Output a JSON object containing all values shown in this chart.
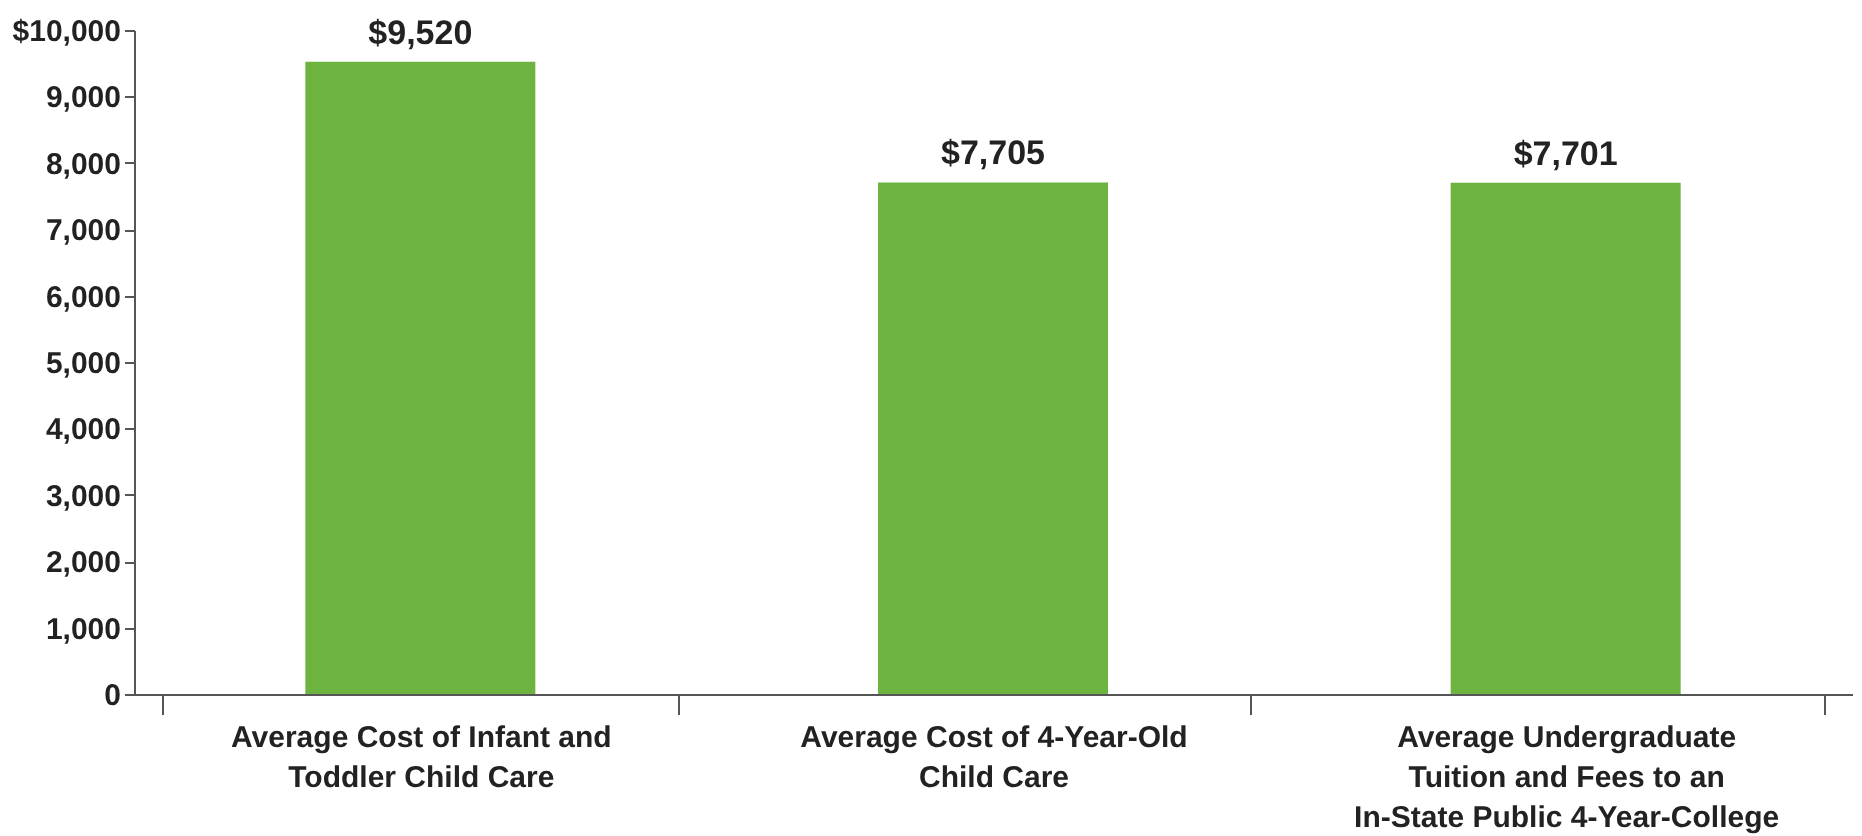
{
  "chart_data": {
    "type": "bar",
    "categories": [
      "Average Cost of Infant and\nToddler Child Care",
      "Average Cost of 4-Year-Old\nChild Care",
      "Average Undergraduate\nTuition and Fees to an\nIn-State Public 4-Year-College"
    ],
    "values": [
      9520,
      7705,
      7701
    ],
    "value_labels": [
      "$9,520",
      "$7,705",
      "$7,701"
    ],
    "color": "#6db33f",
    "ylim": [
      0,
      10000
    ],
    "yticks": [
      0,
      {
        "value": 1000,
        "label": "1,000"
      },
      {
        "value": 2000,
        "label": "2,000"
      },
      {
        "value": 3000,
        "label": "3,000"
      },
      {
        "value": 4000,
        "label": "4,000"
      },
      {
        "value": 5000,
        "label": "5,000"
      },
      {
        "value": 6000,
        "label": "6,000"
      },
      {
        "value": 7000,
        "label": "7,000"
      },
      {
        "value": 8000,
        "label": "8,000"
      },
      {
        "value": 9000,
        "label": "9,000"
      },
      {
        "value": 10000,
        "label": "$10,000"
      }
    ],
    "grid": false
  }
}
